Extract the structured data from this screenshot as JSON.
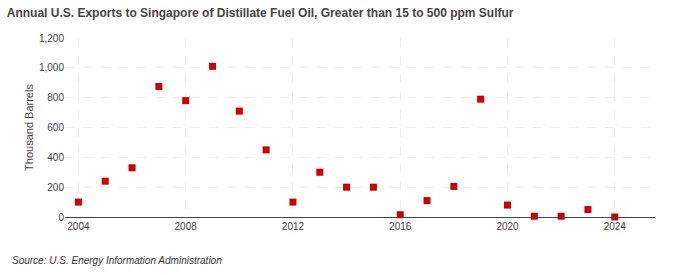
{
  "chart_data": {
    "type": "scatter",
    "title": "Annual U.S. Exports to Singapore of Distillate Fuel Oil, Greater than 15 to 500 ppm Sulfur",
    "y_label": "Thousand Barrels",
    "annotations": [
      "Source: U.S. Energy Information Administration"
    ],
    "x": [
      2004,
      2005,
      2006,
      2007,
      2008,
      2009,
      2010,
      2011,
      2012,
      2013,
      2014,
      2015,
      2016,
      2017,
      2018,
      2019,
      2020,
      2021,
      2022,
      2023,
      2024
    ],
    "values": [
      100,
      240,
      330,
      875,
      780,
      1010,
      710,
      450,
      100,
      300,
      200,
      200,
      15,
      110,
      205,
      790,
      80,
      5,
      5,
      50,
      0
    ],
    "color": "#cc0000",
    "marker": "square",
    "xlim": [
      2003.5,
      2025.5
    ],
    "xticks": [
      2004,
      2008,
      2012,
      2016,
      2020,
      2024
    ],
    "ylim": [
      0,
      1200
    ],
    "yticks": [
      0,
      200,
      400,
      600,
      800,
      {
        "value": 1000,
        "label": "1,000"
      },
      {
        "value": 1200,
        "label": "1,200"
      }
    ],
    "grid": true
  }
}
